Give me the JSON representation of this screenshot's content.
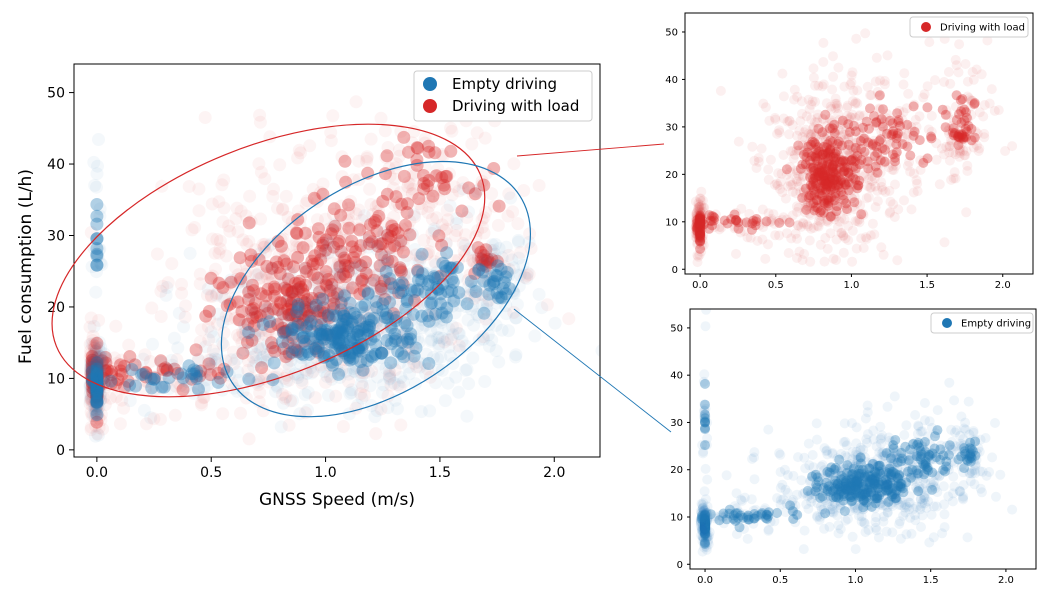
{
  "colors": {
    "empty": "#1f77b4",
    "load": "#d62728",
    "axis": "#000000",
    "legend_border": "#cccccc"
  },
  "chart_data": [
    {
      "id": "main",
      "type": "scatter",
      "xlabel": "GNSS Speed (m/s)",
      "ylabel": "Fuel consumption (L/h)",
      "xlim": [
        -0.1,
        2.2
      ],
      "ylim": [
        -1,
        54
      ],
      "xticks": [
        0.0,
        0.5,
        1.0,
        1.5,
        2.0
      ],
      "xtick_labels": [
        "0.0",
        "0.5",
        "1.0",
        "1.5",
        "2.0"
      ],
      "yticks": [
        0,
        10,
        20,
        30,
        40,
        50
      ],
      "ytick_labels": [
        "0",
        "10",
        "20",
        "30",
        "40",
        "50"
      ],
      "legend": {
        "placement": "top-right",
        "entries": [
          "Empty driving",
          "Driving with load"
        ]
      },
      "series": [
        {
          "name": "Driving with load",
          "color_key": "load",
          "clusters": [
            {
              "x": [
                0.0,
                0.0
              ],
              "y": [
                9,
                4
              ],
              "n": 60
            },
            {
              "x": [
                0.0,
                0.15
              ],
              "y": [
                10,
                3
              ],
              "n": 50
            },
            {
              "x": [
                0.25,
                0.55
              ],
              "y": [
                11,
                3
              ],
              "n": 70
            },
            {
              "x": [
                0.85,
                0.3
              ],
              "y": [
                21,
                9
              ],
              "n": 320
            },
            {
              "x": [
                1.15,
                0.35
              ],
              "y": [
                27,
                9
              ],
              "n": 180
            },
            {
              "x": [
                1.4,
                0.25
              ],
              "y": [
                38,
                5
              ],
              "n": 80
            },
            {
              "x": [
                1.7,
                0.05
              ],
              "y": [
                27,
                3
              ],
              "n": 30
            }
          ]
        },
        {
          "name": "Empty driving",
          "color_key": "empty",
          "clusters": [
            {
              "x": [
                0.0,
                0.0
              ],
              "y": [
                9,
                3
              ],
              "n": 80
            },
            {
              "x": [
                0.0,
                0.0
              ],
              "y": [
                30,
                8
              ],
              "n": 20
            },
            {
              "x": [
                0.3,
                0.4
              ],
              "y": [
                10,
                2
              ],
              "n": 60
            },
            {
              "x": [
                1.1,
                0.33
              ],
              "y": [
                16,
                5
              ],
              "n": 360
            },
            {
              "x": [
                1.45,
                0.25
              ],
              "y": [
                22,
                6
              ],
              "n": 130
            },
            {
              "x": [
                1.75,
                0.07
              ],
              "y": [
                23,
                3
              ],
              "n": 40
            }
          ]
        }
      ],
      "annotations": [
        {
          "type": "ellipse",
          "color_key": "load",
          "center": [
            0.75,
            26.5
          ],
          "semi_axes_data": [
            1.0,
            16.0
          ],
          "angle_deg": -22
        },
        {
          "type": "ellipse",
          "color_key": "empty",
          "center": [
            1.22,
            22.5
          ],
          "semi_axes_data": [
            0.75,
            14.5
          ],
          "angle_deg": -33
        }
      ]
    },
    {
      "id": "inset-load",
      "type": "scatter",
      "xlim": [
        -0.1,
        2.2
      ],
      "ylim": [
        -1,
        54
      ],
      "xticks": [
        0.0,
        0.5,
        1.0,
        1.5,
        2.0
      ],
      "xtick_labels": [
        "0.0",
        "0.5",
        "1.0",
        "1.5",
        "2.0"
      ],
      "yticks": [
        0,
        10,
        20,
        30,
        40,
        50
      ],
      "ytick_labels": [
        "0",
        "10",
        "20",
        "30",
        "40",
        "50"
      ],
      "legend": {
        "placement": "top-right",
        "entries": [
          "Driving with load"
        ]
      },
      "series": [
        {
          "name": "Driving with load",
          "color_key": "load",
          "clusters": [
            {
              "x": [
                0.0,
                0.0
              ],
              "y": [
                9,
                4
              ],
              "n": 70
            },
            {
              "x": [
                0.2,
                0.5
              ],
              "y": [
                10,
                2
              ],
              "n": 80
            },
            {
              "x": [
                0.85,
                0.2
              ],
              "y": [
                20,
                9
              ],
              "n": 420
            },
            {
              "x": [
                1.2,
                0.35
              ],
              "y": [
                28,
                8
              ],
              "n": 150
            },
            {
              "x": [
                1.75,
                0.12
              ],
              "y": [
                32,
                7
              ],
              "n": 50
            },
            {
              "x": [
                1.7,
                0.04
              ],
              "y": [
                28,
                2
              ],
              "n": 25
            }
          ]
        }
      ]
    },
    {
      "id": "inset-empty",
      "type": "scatter",
      "xlim": [
        -0.1,
        2.2
      ],
      "ylim": [
        -1,
        54
      ],
      "xticks": [
        0.0,
        0.5,
        1.0,
        1.5,
        2.0
      ],
      "xtick_labels": [
        "0.0",
        "0.5",
        "1.0",
        "1.5",
        "2.0"
      ],
      "yticks": [
        0,
        10,
        20,
        30,
        40,
        50
      ],
      "ytick_labels": [
        "0",
        "10",
        "20",
        "30",
        "40",
        "50"
      ],
      "legend": {
        "placement": "top-right",
        "entries": [
          "Empty driving"
        ]
      },
      "series": [
        {
          "name": "Empty driving",
          "color_key": "empty",
          "clusters": [
            {
              "x": [
                0.0,
                0.0
              ],
              "y": [
                8,
                3
              ],
              "n": 90
            },
            {
              "x": [
                0.0,
                0.0
              ],
              "y": [
                30,
                8
              ],
              "n": 20
            },
            {
              "x": [
                0.3,
                0.4
              ],
              "y": [
                10,
                2
              ],
              "n": 80
            },
            {
              "x": [
                1.05,
                0.3
              ],
              "y": [
                17,
                5
              ],
              "n": 420
            },
            {
              "x": [
                1.45,
                0.25
              ],
              "y": [
                22,
                6
              ],
              "n": 120
            },
            {
              "x": [
                1.75,
                0.07
              ],
              "y": [
                23,
                3
              ],
              "n": 40
            }
          ]
        }
      ]
    }
  ],
  "connectors": [
    {
      "from": "load-ellipse",
      "to": "inset-load",
      "color_key": "load"
    },
    {
      "from": "empty-ellipse",
      "to": "inset-empty",
      "color_key": "empty"
    }
  ]
}
